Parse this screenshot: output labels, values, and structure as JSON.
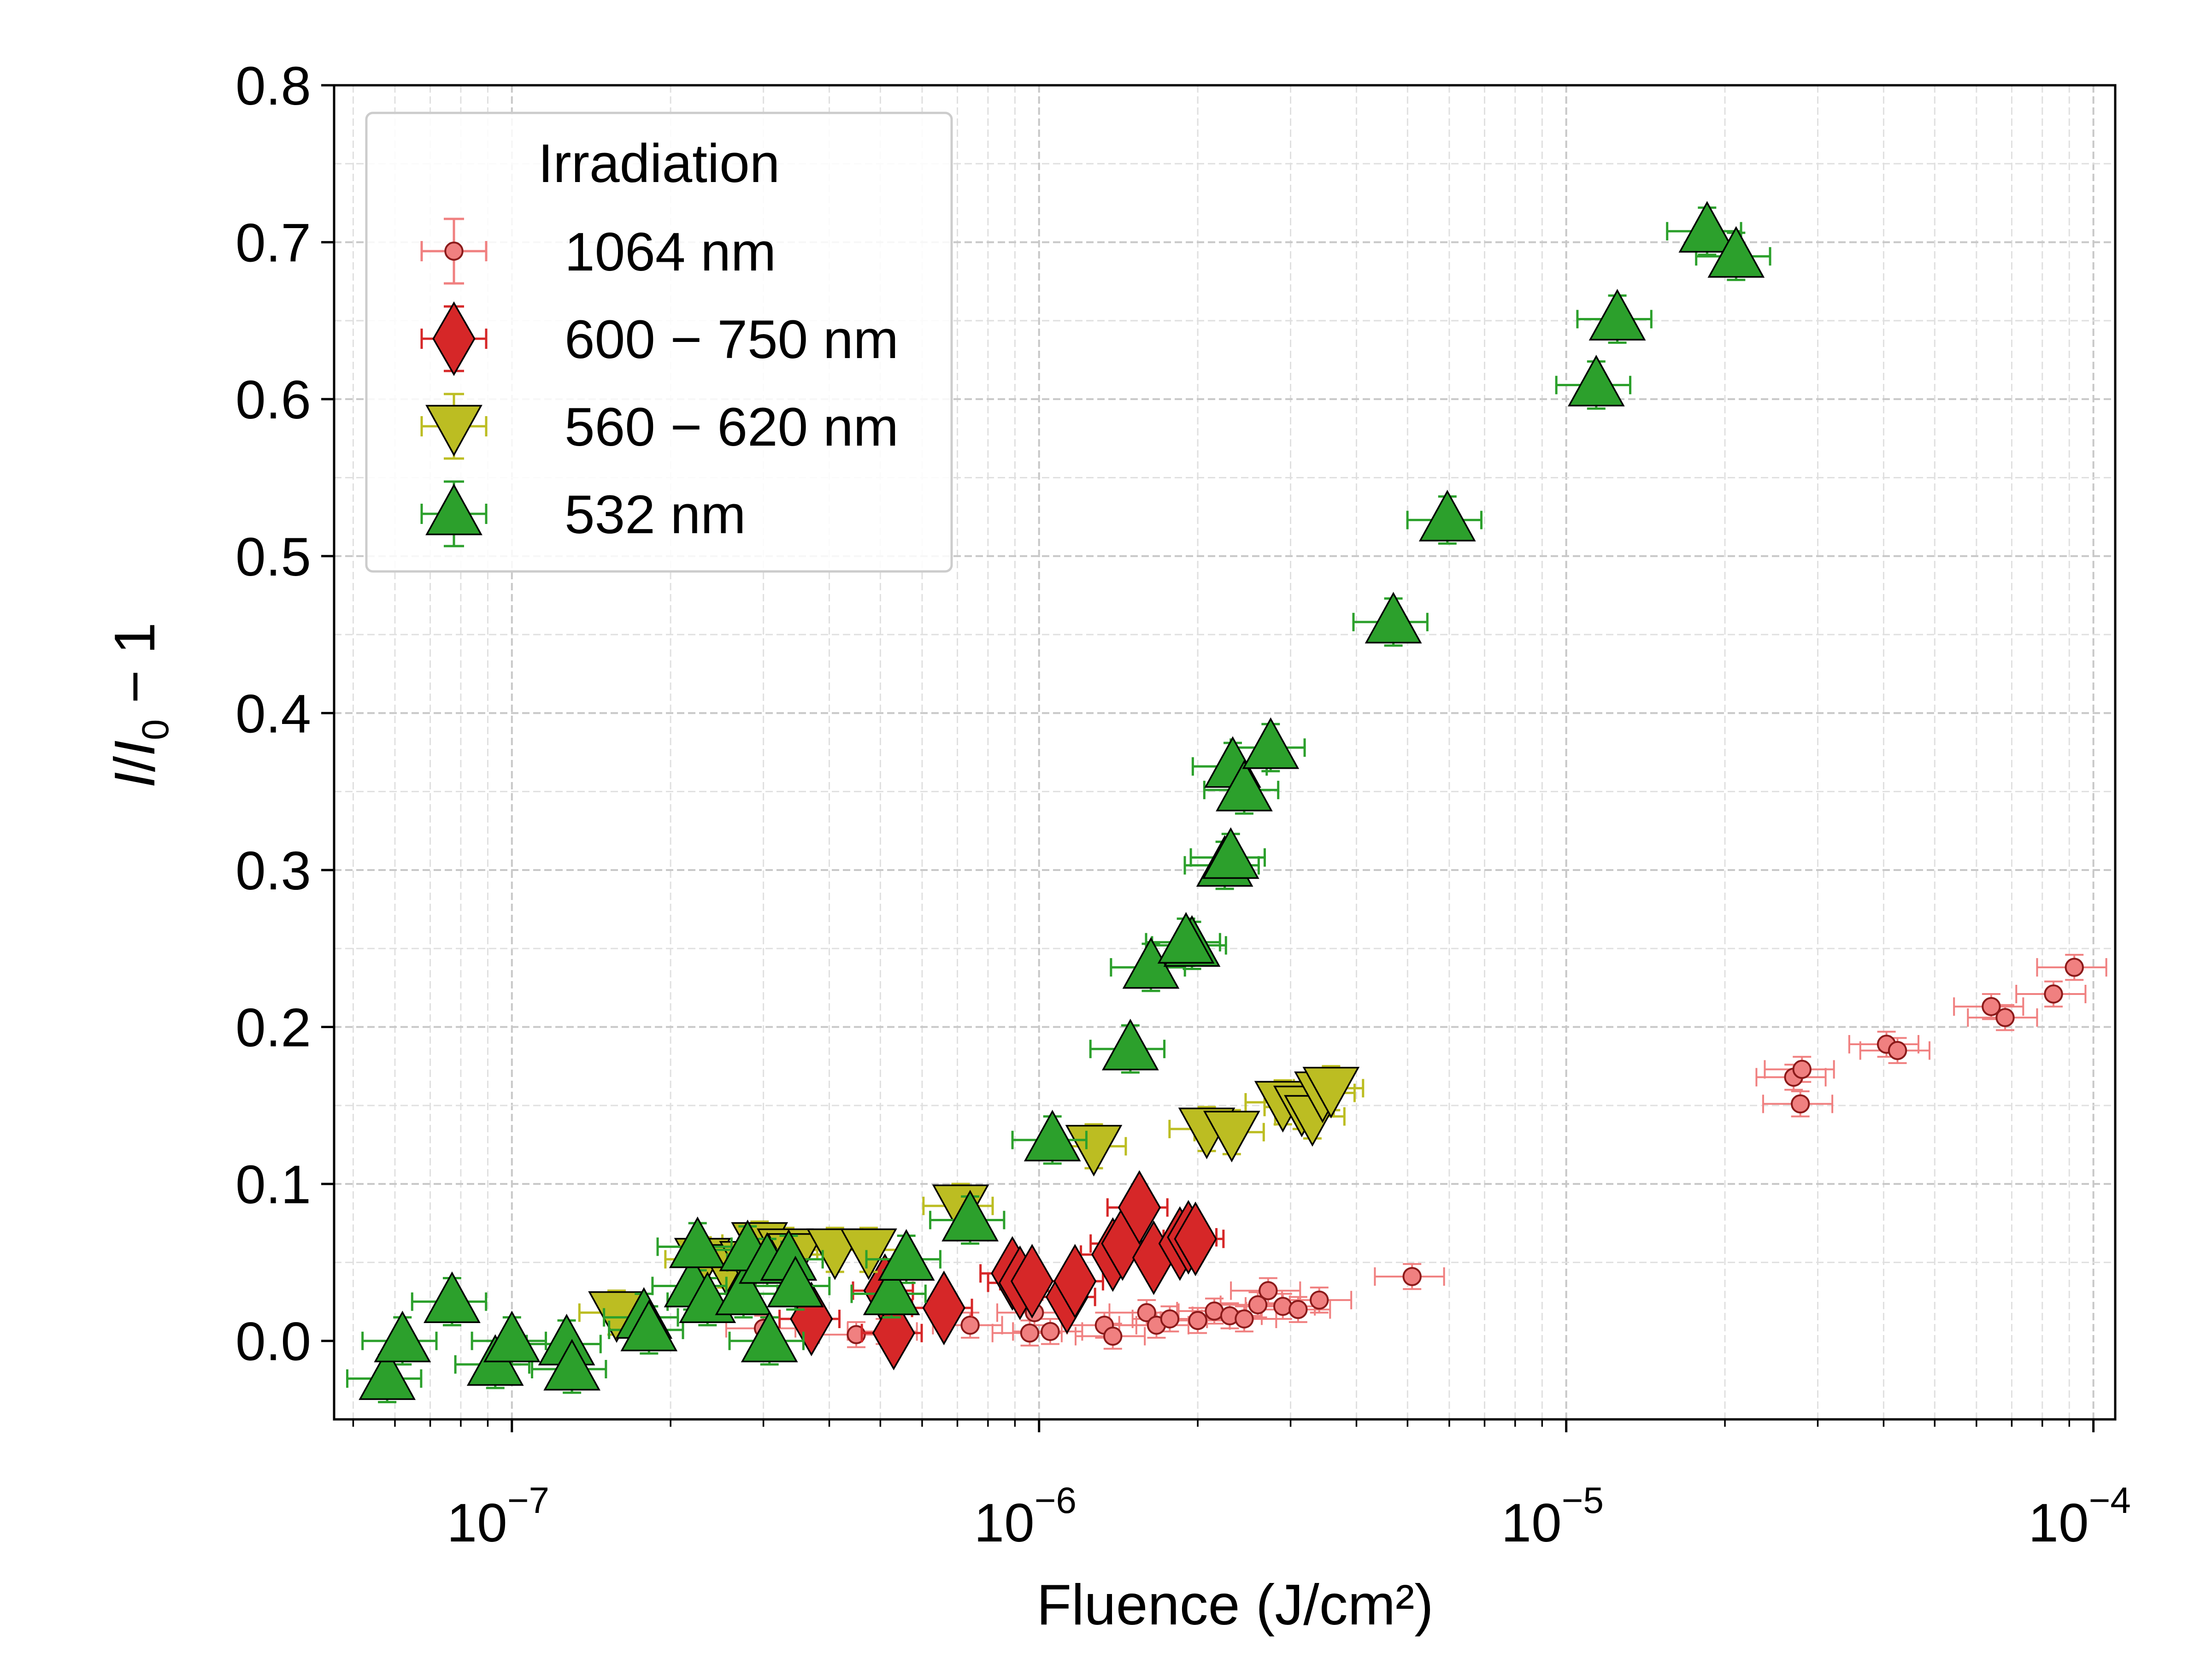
{
  "chart_data": {
    "type": "scatter",
    "title": "",
    "xlabel": "Fluence (J/cm²)",
    "ylabel": {
      "i1": "I",
      "slash": "/",
      "i2": "I",
      "sub": "0",
      "rest": " − 1"
    },
    "xscale": "log",
    "xlim": [
      4.6e-08,
      0.00011
    ],
    "ylim": [
      -0.05,
      0.8
    ],
    "x_ticks": [
      {
        "value": 1e-07,
        "base": "10",
        "exp": "−7"
      },
      {
        "value": 1e-06,
        "base": "10",
        "exp": "−6"
      },
      {
        "value": 1e-05,
        "base": "10",
        "exp": "−5"
      },
      {
        "value": 0.0001,
        "base": "10",
        "exp": "−4"
      }
    ],
    "y_ticks": [
      {
        "value": 0.0,
        "label": "0.0"
      },
      {
        "value": 0.1,
        "label": "0.1"
      },
      {
        "value": 0.2,
        "label": "0.2"
      },
      {
        "value": 0.3,
        "label": "0.3"
      },
      {
        "value": 0.4,
        "label": "0.4"
      },
      {
        "value": 0.5,
        "label": "0.5"
      },
      {
        "value": 0.6,
        "label": "0.6"
      },
      {
        "value": 0.7,
        "label": "0.7"
      },
      {
        "value": 0.8,
        "label": "0.8"
      }
    ],
    "grid": true,
    "legend": {
      "title": "Irradiation",
      "position": "top-left"
    },
    "series": [
      {
        "name": "1064 nm",
        "marker": "circle",
        "color": "#f08080",
        "edge": "#8b1a1a",
        "xerr_frac": 0.15,
        "yerr": 0.008,
        "points": [
          [
            3e-07,
            0.008
          ],
          [
            4.5e-07,
            0.004
          ],
          [
            5.1e-07,
            0.006
          ],
          [
            7.4e-07,
            0.01
          ],
          [
            9.6e-07,
            0.005
          ],
          [
            9.8e-07,
            0.018
          ],
          [
            1.05e-06,
            0.006
          ],
          [
            1.33e-06,
            0.01
          ],
          [
            1.38e-06,
            0.003
          ],
          [
            1.6e-06,
            0.018
          ],
          [
            1.67e-06,
            0.01
          ],
          [
            1.77e-06,
            0.014
          ],
          [
            2e-06,
            0.013
          ],
          [
            2.15e-06,
            0.019
          ],
          [
            2.3e-06,
            0.016
          ],
          [
            2.45e-06,
            0.014
          ],
          [
            2.6e-06,
            0.023
          ],
          [
            2.72e-06,
            0.032
          ],
          [
            2.9e-06,
            0.022
          ],
          [
            3.1e-06,
            0.02
          ],
          [
            3.4e-06,
            0.026
          ],
          [
            5.1e-06,
            0.041
          ],
          [
            2.7e-05,
            0.168
          ],
          [
            2.8e-05,
            0.173
          ],
          [
            2.78e-05,
            0.151
          ],
          [
            4.05e-05,
            0.189
          ],
          [
            4.25e-05,
            0.185
          ],
          [
            6.4e-05,
            0.213
          ],
          [
            6.8e-05,
            0.206
          ],
          [
            8.4e-05,
            0.221
          ],
          [
            9.2e-05,
            0.238
          ]
        ]
      },
      {
        "name": "600 − 750 nm",
        "marker": "diamond",
        "color": "#d62728",
        "edge": "#000000",
        "xerr_frac": 0.13,
        "yerr": 0.012,
        "points": [
          [
            3.7e-07,
            0.014
          ],
          [
            5.1e-07,
            0.032
          ],
          [
            5.3e-07,
            0.005
          ],
          [
            6.6e-07,
            0.021
          ],
          [
            8.9e-07,
            0.043
          ],
          [
            9.2e-07,
            0.037
          ],
          [
            9.7e-07,
            0.038
          ],
          [
            1.13e-06,
            0.028
          ],
          [
            1.17e-06,
            0.038
          ],
          [
            1.38e-06,
            0.055
          ],
          [
            1.44e-06,
            0.062
          ],
          [
            1.55e-06,
            0.085
          ],
          [
            1.65e-06,
            0.053
          ],
          [
            1.85e-06,
            0.062
          ],
          [
            1.92e-06,
            0.066
          ],
          [
            1.98e-06,
            0.065
          ]
        ]
      },
      {
        "name": "560 − 620 nm",
        "marker": "triangle-down",
        "color": "#bcbd22",
        "edge": "#000000",
        "xerr_frac": 0.15,
        "yerr": 0.014,
        "points": [
          [
            1.58e-07,
            0.018
          ],
          [
            2.3e-07,
            0.052
          ],
          [
            2.55e-07,
            0.048
          ],
          [
            2.8e-07,
            0.05
          ],
          [
            2.95e-07,
            0.062
          ],
          [
            3.3e-07,
            0.058
          ],
          [
            3.45e-07,
            0.055
          ],
          [
            4.1e-07,
            0.058
          ],
          [
            4.75e-07,
            0.058
          ],
          [
            7.1e-07,
            0.086
          ],
          [
            1.27e-06,
            0.124
          ],
          [
            2.08e-06,
            0.135
          ],
          [
            2.32e-06,
            0.133
          ],
          [
            2.9e-06,
            0.152
          ],
          [
            3.15e-06,
            0.149
          ],
          [
            3.3e-06,
            0.143
          ],
          [
            3.45e-06,
            0.158
          ],
          [
            3.58e-06,
            0.161
          ]
        ]
      },
      {
        "name": "532 nm",
        "marker": "triangle-up",
        "color": "#2ca02c",
        "edge": "#000000",
        "xerr_frac": 0.16,
        "yerr": 0.015,
        "points": [
          [
            5.8e-08,
            -0.024
          ],
          [
            6.2e-08,
            0.0
          ],
          [
            7.7e-08,
            0.025
          ],
          [
            9.3e-08,
            -0.015
          ],
          [
            1e-07,
            0.0
          ],
          [
            1.27e-07,
            -0.002
          ],
          [
            1.3e-07,
            -0.018
          ],
          [
            1.78e-07,
            0.015
          ],
          [
            1.82e-07,
            0.007
          ],
          [
            2.2e-07,
            0.035
          ],
          [
            2.25e-07,
            0.06
          ],
          [
            2.35e-07,
            0.025
          ],
          [
            2.75e-07,
            0.03
          ],
          [
            2.8e-07,
            0.058
          ],
          [
            3.05e-07,
            0.05
          ],
          [
            3.08e-07,
            0.0
          ],
          [
            3.35e-07,
            0.052
          ],
          [
            3.45e-07,
            0.035
          ],
          [
            5.25e-07,
            0.03
          ],
          [
            5.6e-07,
            0.052
          ],
          [
            7.4e-07,
            0.077
          ],
          [
            1.06e-06,
            0.128
          ],
          [
            1.49e-06,
            0.186
          ],
          [
            1.63e-06,
            0.238
          ],
          [
            1.95e-06,
            0.252
          ],
          [
            1.9e-06,
            0.254
          ],
          [
            2.25e-06,
            0.303
          ],
          [
            2.31e-06,
            0.308
          ],
          [
            2.33e-06,
            0.366
          ],
          [
            2.45e-06,
            0.351
          ],
          [
            2.75e-06,
            0.378
          ],
          [
            4.7e-06,
            0.458
          ],
          [
            5.95e-06,
            0.523
          ],
          [
            1.14e-05,
            0.609
          ],
          [
            1.25e-05,
            0.651
          ],
          [
            1.85e-05,
            0.707
          ],
          [
            2.1e-05,
            0.691
          ]
        ]
      }
    ]
  }
}
